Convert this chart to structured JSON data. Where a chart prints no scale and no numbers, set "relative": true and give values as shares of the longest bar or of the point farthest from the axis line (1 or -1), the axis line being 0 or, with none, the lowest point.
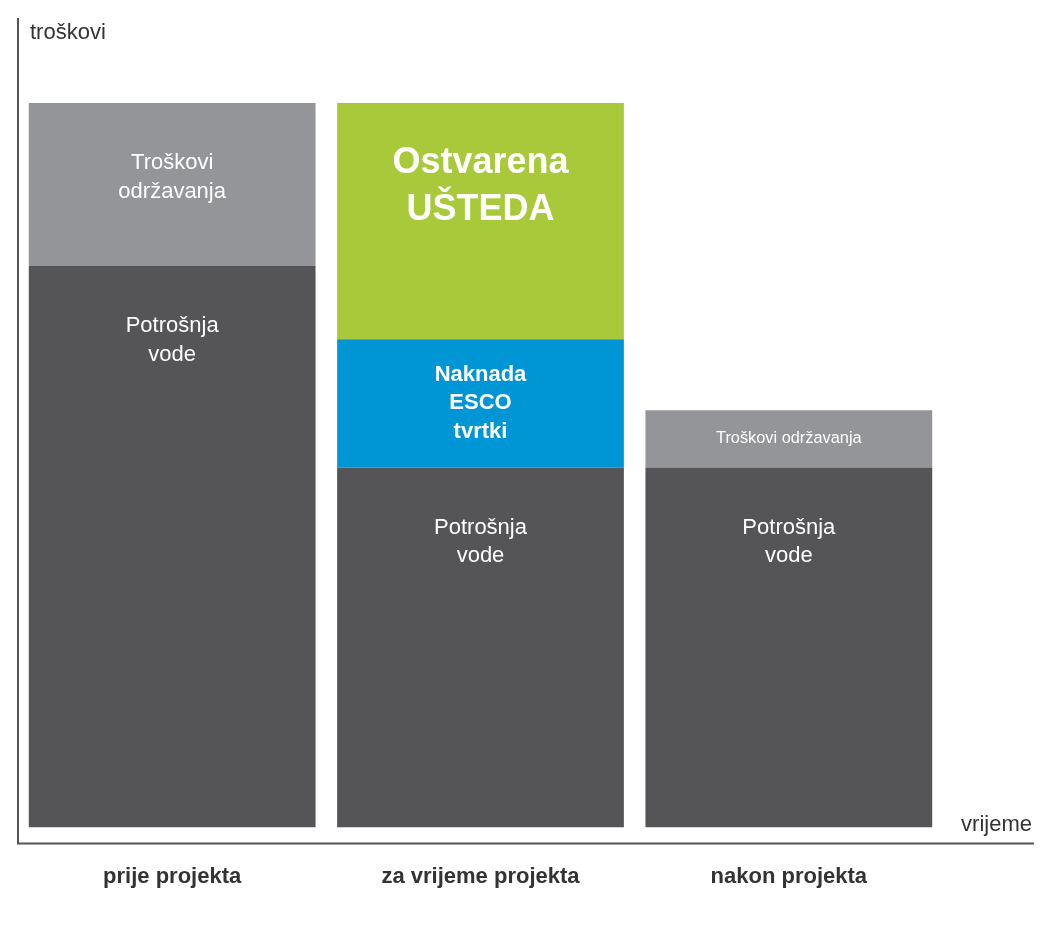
{
  "chart_data": {
    "type": "bar",
    "stacked": true,
    "relative": true,
    "xlabel": "vrijeme",
    "ylabel": "troškovi",
    "legend": false,
    "categories": [
      "prije projekta",
      "za vrijeme projekta",
      "nakon projekta"
    ],
    "series": [
      {
        "name": "Potrošnja vode",
        "color": "#555557",
        "values": [
          0.775,
          0.497,
          0.497
        ]
      },
      {
        "name": "Troškovi održavanja",
        "color": "#939598",
        "values": [
          0.225,
          null,
          0.079
        ]
      },
      {
        "name": "Naknada ESCO tvrtki",
        "color": "#0096d6",
        "values": [
          null,
          0.177,
          null
        ]
      },
      {
        "name": "Ostvarena UŠTEDA",
        "color": "#a8c93a",
        "values": [
          null,
          0.326,
          null
        ]
      }
    ]
  }
}
